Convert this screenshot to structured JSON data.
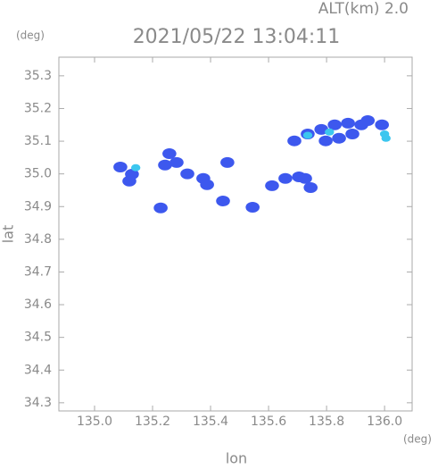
{
  "chart_data": {
    "type": "scatter",
    "title": "2021/05/22 13:04:11",
    "annotation": "ALT(km) 2.0",
    "y_unit": "(deg)",
    "x_unit": "(deg)",
    "x_label": "lon",
    "y_label": "lat",
    "xlim": [
      134.877,
      136.095
    ],
    "xticks": [
      {
        "value": 135,
        "label": "135.0"
      },
      135.2,
      135.4,
      135.6,
      135.8,
      {
        "value": 136,
        "label": "136.0"
      }
    ],
    "ylim": [
      34.275,
      35.357
    ],
    "yticks": [
      34.3,
      34.4,
      34.5,
      34.6,
      34.7,
      34.8,
      34.9,
      {
        "value": 35,
        "label": "35.0"
      },
      35.1,
      35.2,
      35.3
    ],
    "series": [
      {
        "color": "#3d58ee",
        "x": [
          135.689,
          135.735,
          135.782,
          135.828,
          135.874,
          135.92,
          135.843,
          135.797,
          135.889,
          135.942,
          135.991,
          135.658,
          135.612,
          135.705,
          135.726,
          135.089,
          135.129,
          135.12,
          135.243,
          135.283,
          135.258,
          135.375,
          135.388,
          135.458,
          135.32,
          135.228,
          135.545,
          135.443,
          135.745
        ],
        "y": [
          35.101,
          35.122,
          35.136,
          35.15,
          35.155,
          35.15,
          35.109,
          35.101,
          35.122,
          35.163,
          35.15,
          34.986,
          34.964,
          34.991,
          34.986,
          35.021,
          34.999,
          34.978,
          35.027,
          35.035,
          35.062,
          34.986,
          34.967,
          35.035,
          35.0,
          34.896,
          34.898,
          34.917,
          34.958
        ]
      },
      {
        "color": "#3cc6ef",
        "x": [
          135.735,
          135.81,
          135.142,
          136.0,
          136.005
        ],
        "y": [
          35.118,
          35.128,
          35.019,
          35.122,
          35.109
        ]
      }
    ]
  }
}
